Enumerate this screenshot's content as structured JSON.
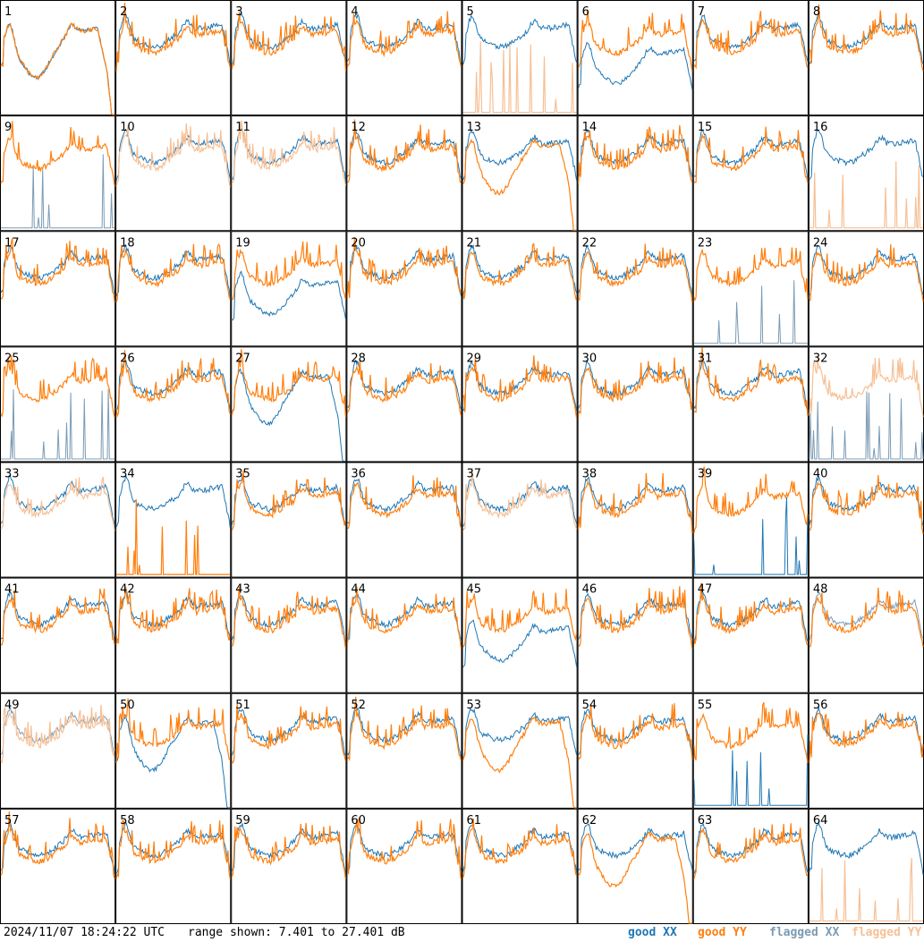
{
  "footer": {
    "timestamp": "2024/11/07 18:24:22 UTC",
    "range_text": "range shown: 7.401 to 27.401 dB"
  },
  "legend": {
    "good_xx": "good XX",
    "good_yy": "good YY",
    "flagged_xx": "flagged XX",
    "flagged_yy": "flagged YY"
  },
  "colors": {
    "good_xx": "#1f77b4",
    "good_yy": "#ff7f0e",
    "flagged_xx": "#7b9bb5",
    "flagged_yy": "#f6c096"
  },
  "chart_data": {
    "type": "line",
    "grid": {
      "rows": 8,
      "cols": 8
    },
    "ylim_db": [
      7.401,
      27.401
    ],
    "panels": [
      {
        "label": "1",
        "xx": "good",
        "yy": "good",
        "xx_profile": "rolloff",
        "yy_profile": "rolloff"
      },
      {
        "label": "2",
        "xx": "good",
        "yy": "good"
      },
      {
        "label": "3",
        "xx": "good",
        "yy": "good"
      },
      {
        "label": "4",
        "xx": "good",
        "yy": "good"
      },
      {
        "label": "5",
        "xx": "good",
        "yy": "flagged",
        "xx_profile": "normal",
        "yy_profile": "spikes"
      },
      {
        "label": "6",
        "xx": "good",
        "yy": "good",
        "xx_profile": "dip"
      },
      {
        "label": "7",
        "xx": "good",
        "yy": "good"
      },
      {
        "label": "8",
        "xx": "good",
        "yy": "good"
      },
      {
        "label": "9",
        "xx": "flagged",
        "yy": "good",
        "xx_profile": "spikes"
      },
      {
        "label": "10",
        "xx": "good",
        "yy": "flagged"
      },
      {
        "label": "11",
        "xx": "good",
        "yy": "flagged"
      },
      {
        "label": "12",
        "xx": "good",
        "yy": "good"
      },
      {
        "label": "13",
        "xx": "good",
        "yy": "good",
        "yy_profile": "rolloff"
      },
      {
        "label": "14",
        "xx": "good",
        "yy": "good"
      },
      {
        "label": "15",
        "xx": "good",
        "yy": "good"
      },
      {
        "label": "16",
        "xx": "good",
        "yy": "flagged",
        "yy_profile": "spikes"
      },
      {
        "label": "17",
        "xx": "good",
        "yy": "good"
      },
      {
        "label": "18",
        "xx": "good",
        "yy": "good"
      },
      {
        "label": "19",
        "xx": "good",
        "yy": "good",
        "xx_profile": "dip"
      },
      {
        "label": "20",
        "xx": "good",
        "yy": "good"
      },
      {
        "label": "21",
        "xx": "good",
        "yy": "good"
      },
      {
        "label": "22",
        "xx": "good",
        "yy": "good"
      },
      {
        "label": "23",
        "xx": "flagged",
        "yy": "good",
        "xx_profile": "spikes"
      },
      {
        "label": "24",
        "xx": "good",
        "yy": "good"
      },
      {
        "label": "25",
        "xx": "flagged",
        "yy": "good",
        "xx_profile": "spikes"
      },
      {
        "label": "26",
        "xx": "good",
        "yy": "good"
      },
      {
        "label": "27",
        "xx": "good",
        "yy": "good",
        "xx_profile": "rolloff"
      },
      {
        "label": "28",
        "xx": "good",
        "yy": "good"
      },
      {
        "label": "29",
        "xx": "good",
        "yy": "good"
      },
      {
        "label": "30",
        "xx": "good",
        "yy": "good"
      },
      {
        "label": "31",
        "xx": "good",
        "yy": "good"
      },
      {
        "label": "32",
        "xx": "flagged",
        "yy": "flagged",
        "xx_profile": "spikes"
      },
      {
        "label": "33",
        "xx": "good",
        "yy": "flagged"
      },
      {
        "label": "34",
        "xx": "good",
        "yy": "good",
        "yy_profile": "spikes"
      },
      {
        "label": "35",
        "xx": "good",
        "yy": "good"
      },
      {
        "label": "36",
        "xx": "good",
        "yy": "good"
      },
      {
        "label": "37",
        "xx": "good",
        "yy": "flagged"
      },
      {
        "label": "38",
        "xx": "good",
        "yy": "good"
      },
      {
        "label": "39",
        "xx": "good",
        "yy": "good",
        "xx_profile": "spikes"
      },
      {
        "label": "40",
        "xx": "good",
        "yy": "good"
      },
      {
        "label": "41",
        "xx": "good",
        "yy": "good"
      },
      {
        "label": "42",
        "xx": "good",
        "yy": "good"
      },
      {
        "label": "43",
        "xx": "good",
        "yy": "good"
      },
      {
        "label": "44",
        "xx": "good",
        "yy": "good"
      },
      {
        "label": "45",
        "xx": "good",
        "yy": "good",
        "xx_profile": "dip"
      },
      {
        "label": "46",
        "xx": "good",
        "yy": "good"
      },
      {
        "label": "47",
        "xx": "good",
        "yy": "good"
      },
      {
        "label": "48",
        "xx": "flagged",
        "yy": "good"
      },
      {
        "label": "49",
        "xx": "flagged",
        "yy": "flagged"
      },
      {
        "label": "50",
        "xx": "good",
        "yy": "good",
        "xx_profile": "rolloff"
      },
      {
        "label": "51",
        "xx": "good",
        "yy": "good"
      },
      {
        "label": "52",
        "xx": "good",
        "yy": "good"
      },
      {
        "label": "53",
        "xx": "good",
        "yy": "good",
        "yy_profile": "rolloff"
      },
      {
        "label": "54",
        "xx": "good",
        "yy": "good"
      },
      {
        "label": "55",
        "xx": "good",
        "yy": "good",
        "xx_profile": "spikes"
      },
      {
        "label": "56",
        "xx": "good",
        "yy": "good"
      },
      {
        "label": "57",
        "xx": "good",
        "yy": "good"
      },
      {
        "label": "58",
        "xx": "good",
        "yy": "good"
      },
      {
        "label": "59",
        "xx": "good",
        "yy": "good"
      },
      {
        "label": "60",
        "xx": "good",
        "yy": "good"
      },
      {
        "label": "61",
        "xx": "good",
        "yy": "good"
      },
      {
        "label": "62",
        "xx": "good",
        "yy": "good",
        "yy_profile": "rolloff"
      },
      {
        "label": "63",
        "xx": "good",
        "yy": "good"
      },
      {
        "label": "64",
        "xx": "good",
        "yy": "flagged",
        "yy_profile": "spikes"
      }
    ]
  }
}
